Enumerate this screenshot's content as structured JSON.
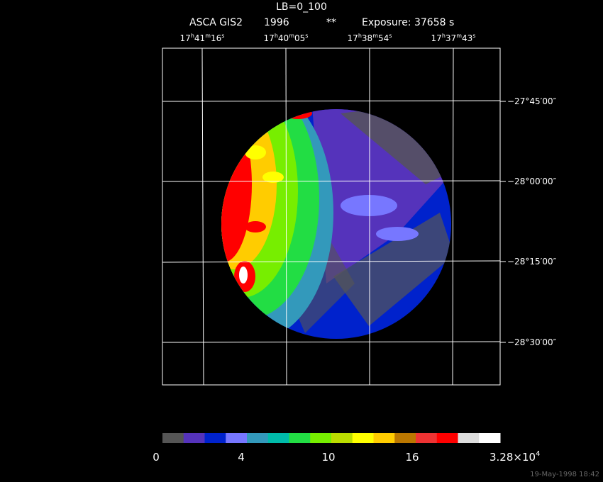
{
  "header": {
    "title": "LB=0_100",
    "instrument": "ASCA GIS2",
    "year": "1996",
    "mark": "**",
    "exposure": "Exposure: 37658 s"
  },
  "ra_labels": [
    [
      "17",
      "h",
      "41",
      "m",
      "16",
      "s"
    ],
    [
      "17",
      "h",
      "40",
      "m",
      "05",
      "s"
    ],
    [
      "17",
      "h",
      "38",
      "m",
      "54",
      "s"
    ],
    [
      "17",
      "h",
      "37",
      "m",
      "43",
      "s"
    ]
  ],
  "dec_labels": [
    "−27°45′00″",
    "−28°00′00″",
    "−28°15′00″",
    "−28°30′00″"
  ],
  "colorbar": {
    "colors": [
      "#555555",
      "#5533bb",
      "#0022cc",
      "#7777ff",
      "#3399bb",
      "#00bbaa",
      "#22dd44",
      "#77ee00",
      "#bbdd00",
      "#ffff00",
      "#ffcc00",
      "#bb7700",
      "#ee3333",
      "#ff0000",
      "#dddddd",
      "#ffffff"
    ],
    "labels": [
      [
        "0"
      ],
      [
        "4"
      ],
      [
        "10"
      ],
      [
        "16"
      ],
      [
        "3.28×10",
        "4"
      ]
    ]
  },
  "footer": {
    "date": "19-May-1998 18:42"
  }
}
